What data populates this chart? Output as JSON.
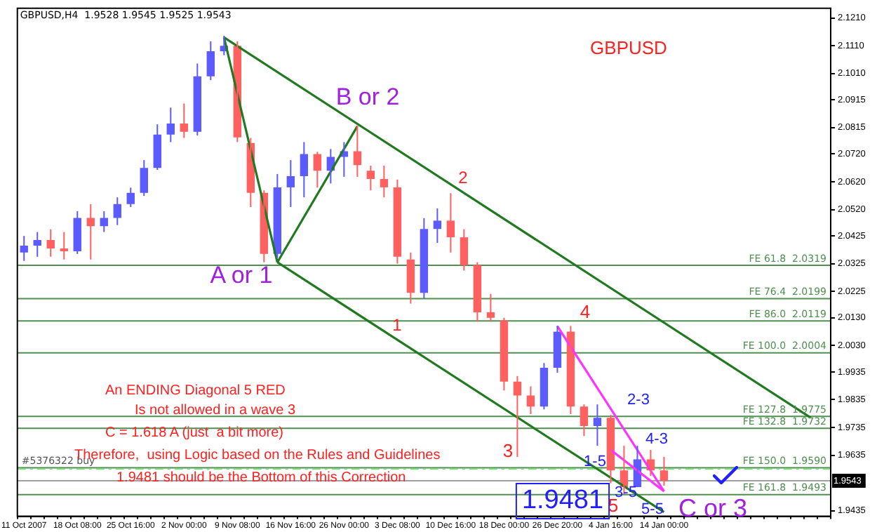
{
  "chart_data": {
    "type": "candlestick",
    "title": "GBPUSD,H4  1.9528 1.9545 1.9525 1.9543",
    "categories": [
      "11 Oct 2007",
      null,
      null,
      null,
      "18 Oct 08:00",
      null,
      null,
      null,
      "25 Oct 16:00",
      null,
      null,
      null,
      "2 Nov 00:00",
      null,
      null,
      null,
      "9 Nov 08:00",
      null,
      null,
      null,
      "16 Nov 16:00",
      null,
      null,
      null,
      "26 Nov 00:00",
      null,
      null,
      null,
      "3 Dec 08:00",
      null,
      null,
      null,
      "10 Dec 16:00",
      null,
      null,
      null,
      "18 Dec 00:00",
      null,
      null,
      null,
      "26 Dec 20:00",
      null,
      null,
      null,
      "4 Jan 16:00",
      null,
      null,
      null,
      "14 Jan 00:00",
      null,
      null,
      null,
      null,
      null,
      null,
      null,
      null,
      null,
      null,
      null,
      null
    ],
    "ohlc": [
      [
        2.0365,
        2.0425,
        2.0335,
        2.039
      ],
      [
        2.039,
        2.0439,
        2.035,
        2.041
      ],
      [
        2.041,
        2.0449,
        2.035,
        2.038
      ],
      [
        2.038,
        2.0439,
        2.034,
        2.037
      ],
      [
        2.037,
        2.0514,
        2.036,
        2.049
      ],
      [
        2.049,
        2.0539,
        2.034,
        2.046
      ],
      [
        2.046,
        2.0514,
        2.0439,
        2.049
      ],
      [
        2.049,
        2.0564,
        2.0464,
        2.054
      ],
      [
        2.054,
        2.0599,
        2.0529,
        2.058
      ],
      [
        2.058,
        2.0698,
        2.0569,
        2.067
      ],
      [
        2.067,
        2.0827,
        2.0663,
        2.079
      ],
      [
        2.079,
        2.0887,
        2.0763,
        2.083
      ],
      [
        2.083,
        2.0902,
        2.0778,
        2.08
      ],
      [
        2.08,
        2.1046,
        2.0787,
        2.1
      ],
      [
        2.1,
        2.1126,
        2.0986,
        2.109
      ],
      [
        2.109,
        2.1146,
        2.1076,
        2.111
      ],
      [
        2.111,
        2.1126,
        2.0763,
        2.078
      ],
      [
        2.076,
        2.0778,
        2.0529,
        2.058
      ],
      [
        2.058,
        2.0589,
        2.033,
        2.036
      ],
      [
        2.036,
        2.0648,
        2.0345,
        2.06
      ],
      [
        2.06,
        2.0698,
        2.0529,
        2.064
      ],
      [
        2.064,
        2.0763,
        2.0564,
        2.072
      ],
      [
        2.072,
        2.0728,
        2.0599,
        2.066
      ],
      [
        2.066,
        2.0738,
        2.0614,
        2.071
      ],
      [
        2.071,
        2.0763,
        2.0638,
        2.073
      ],
      [
        2.073,
        2.0822,
        2.0638,
        2.068
      ],
      [
        2.066,
        2.0678,
        2.0589,
        2.063
      ],
      [
        2.063,
        2.0678,
        2.0564,
        2.06
      ],
      [
        2.06,
        2.0628,
        2.0325,
        2.035
      ],
      [
        2.034,
        2.0365,
        2.0181,
        2.022
      ],
      [
        2.022,
        2.0489,
        2.02,
        2.045
      ],
      [
        2.045,
        2.0524,
        2.04,
        2.048
      ],
      [
        2.048,
        2.0579,
        2.0365,
        2.042
      ],
      [
        2.042,
        2.0449,
        2.03,
        2.032
      ],
      [
        2.032,
        2.033,
        2.0116,
        2.015
      ],
      [
        2.015,
        2.0216,
        2.0116,
        2.013
      ],
      [
        2.012,
        2.013,
        1.9868,
        1.99
      ],
      [
        1.99,
        1.992,
        1.9629,
        1.985
      ],
      [
        1.985,
        1.9883,
        1.9783,
        1.981
      ],
      [
        1.981,
        1.9967,
        1.98,
        1.995
      ],
      [
        1.995,
        2.0101,
        1.9932,
        2.008
      ],
      [
        2.008,
        2.0101,
        1.9783,
        1.981
      ],
      [
        1.981,
        1.9818,
        1.9704,
        1.974
      ],
      [
        1.974,
        1.9818,
        1.9669,
        1.977
      ],
      [
        1.977,
        1.978,
        1.9534,
        1.958
      ],
      [
        1.958,
        1.9669,
        1.9495,
        1.952
      ],
      [
        1.952,
        1.9669,
        1.952,
        1.962
      ],
      [
        1.962,
        1.9654,
        1.956,
        1.958
      ],
      [
        1.958,
        1.9629,
        1.9525,
        1.9543
      ],
      null,
      null,
      null,
      null,
      null,
      null,
      null,
      null,
      null,
      null,
      null,
      null
    ],
    "colors": [
      "#5b5bff",
      "#5b5bff",
      "#ff6060",
      "#ff6060",
      "#5b5bff",
      "#ff6060",
      "#5b5bff",
      "#5b5bff",
      "#5b5bff",
      "#5b5bff",
      "#5b5bff",
      "#5b5bff",
      "#ff6060",
      "#5b5bff",
      "#5b5bff",
      "#5b5bff",
      "#ff6060",
      "#ff6060",
      "#ff6060",
      "#5b5bff",
      "#5b5bff",
      "#5b5bff",
      "#ff6060",
      "#5b5bff",
      "#5b5bff",
      "#ff6060",
      "#ff6060",
      "#ff6060",
      "#ff6060",
      "#ff6060",
      "#5b5bff",
      "#5b5bff",
      "#ff6060",
      "#ff6060",
      "#ff6060",
      "#ff6060",
      "#ff6060",
      "#ff6060",
      "#ff6060",
      "#5b5bff",
      "#5b5bff",
      "#ff6060",
      "#ff6060",
      "#5b5bff",
      "#ff6060",
      "#ff6060",
      "#5b5bff",
      "#ff6060",
      "#ff6060",
      null,
      null,
      null,
      null,
      null,
      null,
      null,
      null,
      null,
      null,
      null,
      null
    ],
    "series": [
      {
        "type": "line",
        "color": "#217a21",
        "values": [
          null,
          null,
          null,
          null,
          null,
          null,
          null,
          null,
          null,
          null,
          null,
          null,
          null,
          null,
          null,
          2.114,
          null,
          null,
          null,
          2.033,
          null,
          null,
          null,
          null,
          null,
          null,
          null,
          null,
          null,
          null,
          null,
          null,
          null,
          null,
          null,
          null,
          null,
          null,
          null,
          null,
          null,
          null,
          null,
          null,
          null,
          null,
          null,
          null,
          null,
          null,
          null,
          null,
          null,
          null,
          null,
          null,
          null,
          null,
          null,
          null,
          null
        ]
      },
      {
        "type": "line",
        "color": "#217a21",
        "values": [
          null,
          null,
          null,
          null,
          null,
          null,
          null,
          null,
          null,
          null,
          null,
          null,
          null,
          null,
          null,
          null,
          null,
          null,
          null,
          2.033,
          null,
          null,
          null,
          null,
          null,
          2.082,
          null,
          null,
          null,
          null,
          null,
          null,
          null,
          null,
          null,
          null,
          null,
          null,
          null,
          null,
          null,
          null,
          null,
          null,
          null,
          null,
          null,
          null,
          null,
          null,
          null,
          null,
          null,
          null,
          null,
          null,
          null,
          null,
          null,
          null,
          null
        ]
      },
      {
        "type": "line",
        "color": "#217a21",
        "values": [
          null,
          null,
          null,
          null,
          null,
          null,
          null,
          null,
          null,
          null,
          null,
          null,
          null,
          null,
          null,
          2.114,
          null,
          null,
          null,
          null,
          null,
          null,
          null,
          null,
          null,
          null,
          null,
          null,
          null,
          null,
          null,
          null,
          null,
          null,
          null,
          null,
          null,
          null,
          null,
          null,
          null,
          null,
          null,
          null,
          null,
          null,
          null,
          null,
          null,
          null,
          null,
          null,
          null,
          null,
          null,
          null,
          null,
          null,
          null,
          1.977,
          null
        ]
      },
      {
        "type": "line",
        "color": "#217a21",
        "values": [
          null,
          null,
          null,
          null,
          null,
          null,
          null,
          null,
          null,
          null,
          null,
          null,
          null,
          null,
          null,
          null,
          null,
          null,
          null,
          2.033,
          null,
          null,
          null,
          null,
          null,
          null,
          null,
          null,
          null,
          null,
          null,
          null,
          null,
          null,
          null,
          null,
          null,
          null,
          null,
          null,
          null,
          null,
          null,
          null,
          null,
          null,
          null,
          null,
          1.943,
          null,
          null,
          null,
          null,
          null,
          null,
          null,
          null,
          null,
          null,
          null,
          null
        ]
      },
      {
        "type": "line",
        "color": "#ff33ff",
        "values": [
          null,
          null,
          null,
          null,
          null,
          null,
          null,
          null,
          null,
          null,
          null,
          null,
          null,
          null,
          null,
          null,
          null,
          null,
          null,
          null,
          null,
          null,
          null,
          null,
          null,
          null,
          null,
          null,
          null,
          null,
          null,
          null,
          null,
          null,
          null,
          null,
          null,
          null,
          null,
          null,
          2.01,
          null,
          null,
          null,
          null,
          null,
          null,
          null,
          1.9505,
          null,
          null,
          null,
          null,
          null,
          null,
          null,
          null,
          null,
          null,
          null,
          null
        ]
      },
      {
        "type": "line",
        "color": "#ff33ff",
        "values": [
          null,
          null,
          null,
          null,
          null,
          null,
          null,
          null,
          null,
          null,
          null,
          null,
          null,
          null,
          null,
          null,
          null,
          null,
          null,
          null,
          null,
          null,
          null,
          null,
          null,
          null,
          null,
          null,
          null,
          null,
          null,
          null,
          null,
          null,
          null,
          null,
          null,
          null,
          null,
          null,
          null,
          null,
          null,
          null,
          1.9654,
          null,
          null,
          null,
          1.9505,
          null,
          null,
          null,
          null,
          null,
          null,
          null,
          null,
          null,
          null,
          null,
          null
        ]
      }
    ],
    "ylim": [
      1.9415,
      2.1245
    ],
    "yticks": [
      {
        "value": 2.121,
        "label": "2.1210"
      },
      {
        "value": 2.111,
        "label": "2.1110"
      },
      {
        "value": 2.101,
        "label": "2.1010"
      },
      {
        "value": 2.0915,
        "label": "2.0915"
      },
      {
        "value": 2.0815,
        "label": "2.0815"
      },
      {
        "value": 2.072,
        "label": "2.0720"
      },
      {
        "value": 2.062,
        "label": "2.0620"
      },
      {
        "value": 2.052,
        "label": "2.0520"
      },
      {
        "value": 2.0425,
        "label": "2.0425"
      },
      {
        "value": 2.0325,
        "label": "2.0325"
      },
      {
        "value": 2.0225,
        "label": "2.0225"
      },
      {
        "value": 2.013,
        "label": "2.0130"
      },
      {
        "value": 2.003,
        "label": "2.0030"
      },
      {
        "value": 1.9935,
        "label": "1.9935"
      },
      {
        "value": 1.9835,
        "label": "1.9835"
      },
      {
        "value": 1.9735,
        "label": "1.9735"
      },
      {
        "value": 1.9635,
        "label": "1.9635"
      },
      {
        "value": 1.9435,
        "label": "1.9435"
      }
    ],
    "ref_lines": [
      {
        "axis": "y",
        "value": 2.0319,
        "label": "FE 61.8  2.0319",
        "color": "#4f8f4f"
      },
      {
        "axis": "y",
        "value": 2.0199,
        "label": "FE 76.4  2.0199",
        "color": "#4f8f4f"
      },
      {
        "axis": "y",
        "value": 2.0119,
        "label": "FE 86.0  2.0119",
        "color": "#4f8f4f"
      },
      {
        "axis": "y",
        "value": 2.0004,
        "label": "FE 100.0  2.0004",
        "color": "#4f8f4f"
      },
      {
        "axis": "y",
        "value": 1.9775,
        "label": "FE 127.8  1.9775",
        "color": "#4f8f4f"
      },
      {
        "axis": "y",
        "value": 1.9732,
        "label": "FE 132.8  1.9732",
        "color": "#4f8f4f"
      },
      {
        "axis": "y",
        "value": 1.959,
        "label": "FE 150.0  1.9590",
        "color": "#4f8f4f"
      },
      {
        "axis": "y",
        "value": 1.9493,
        "label": "FE 161.8  1.9493",
        "color": "#4f8f4f"
      },
      {
        "axis": "y",
        "value": 1.9585,
        "label": "#5376322 buy",
        "color": "#7fdc7f",
        "line_style": "dashed"
      },
      {
        "axis": "y",
        "value": 1.9543,
        "label": "1.9543",
        "color": "#a0a0a0"
      }
    ],
    "annotations": [
      "GBPUSD",
      "B or 2",
      "A or 1",
      "1",
      "2",
      "3",
      "4",
      "5",
      "1-5",
      "2-3",
      "4-3",
      "3-5",
      "5-5",
      "C or 3",
      "1.9481",
      "An ENDING Diagonal 5 RED",
      "Is not allowed in a wave 3",
      "C = 1.618 A (just  a bit more)",
      "Therefore,  using Logic based on the Rules and Guidelines",
      "1.9481 should be the Bottom of this Correction"
    ]
  }
}
